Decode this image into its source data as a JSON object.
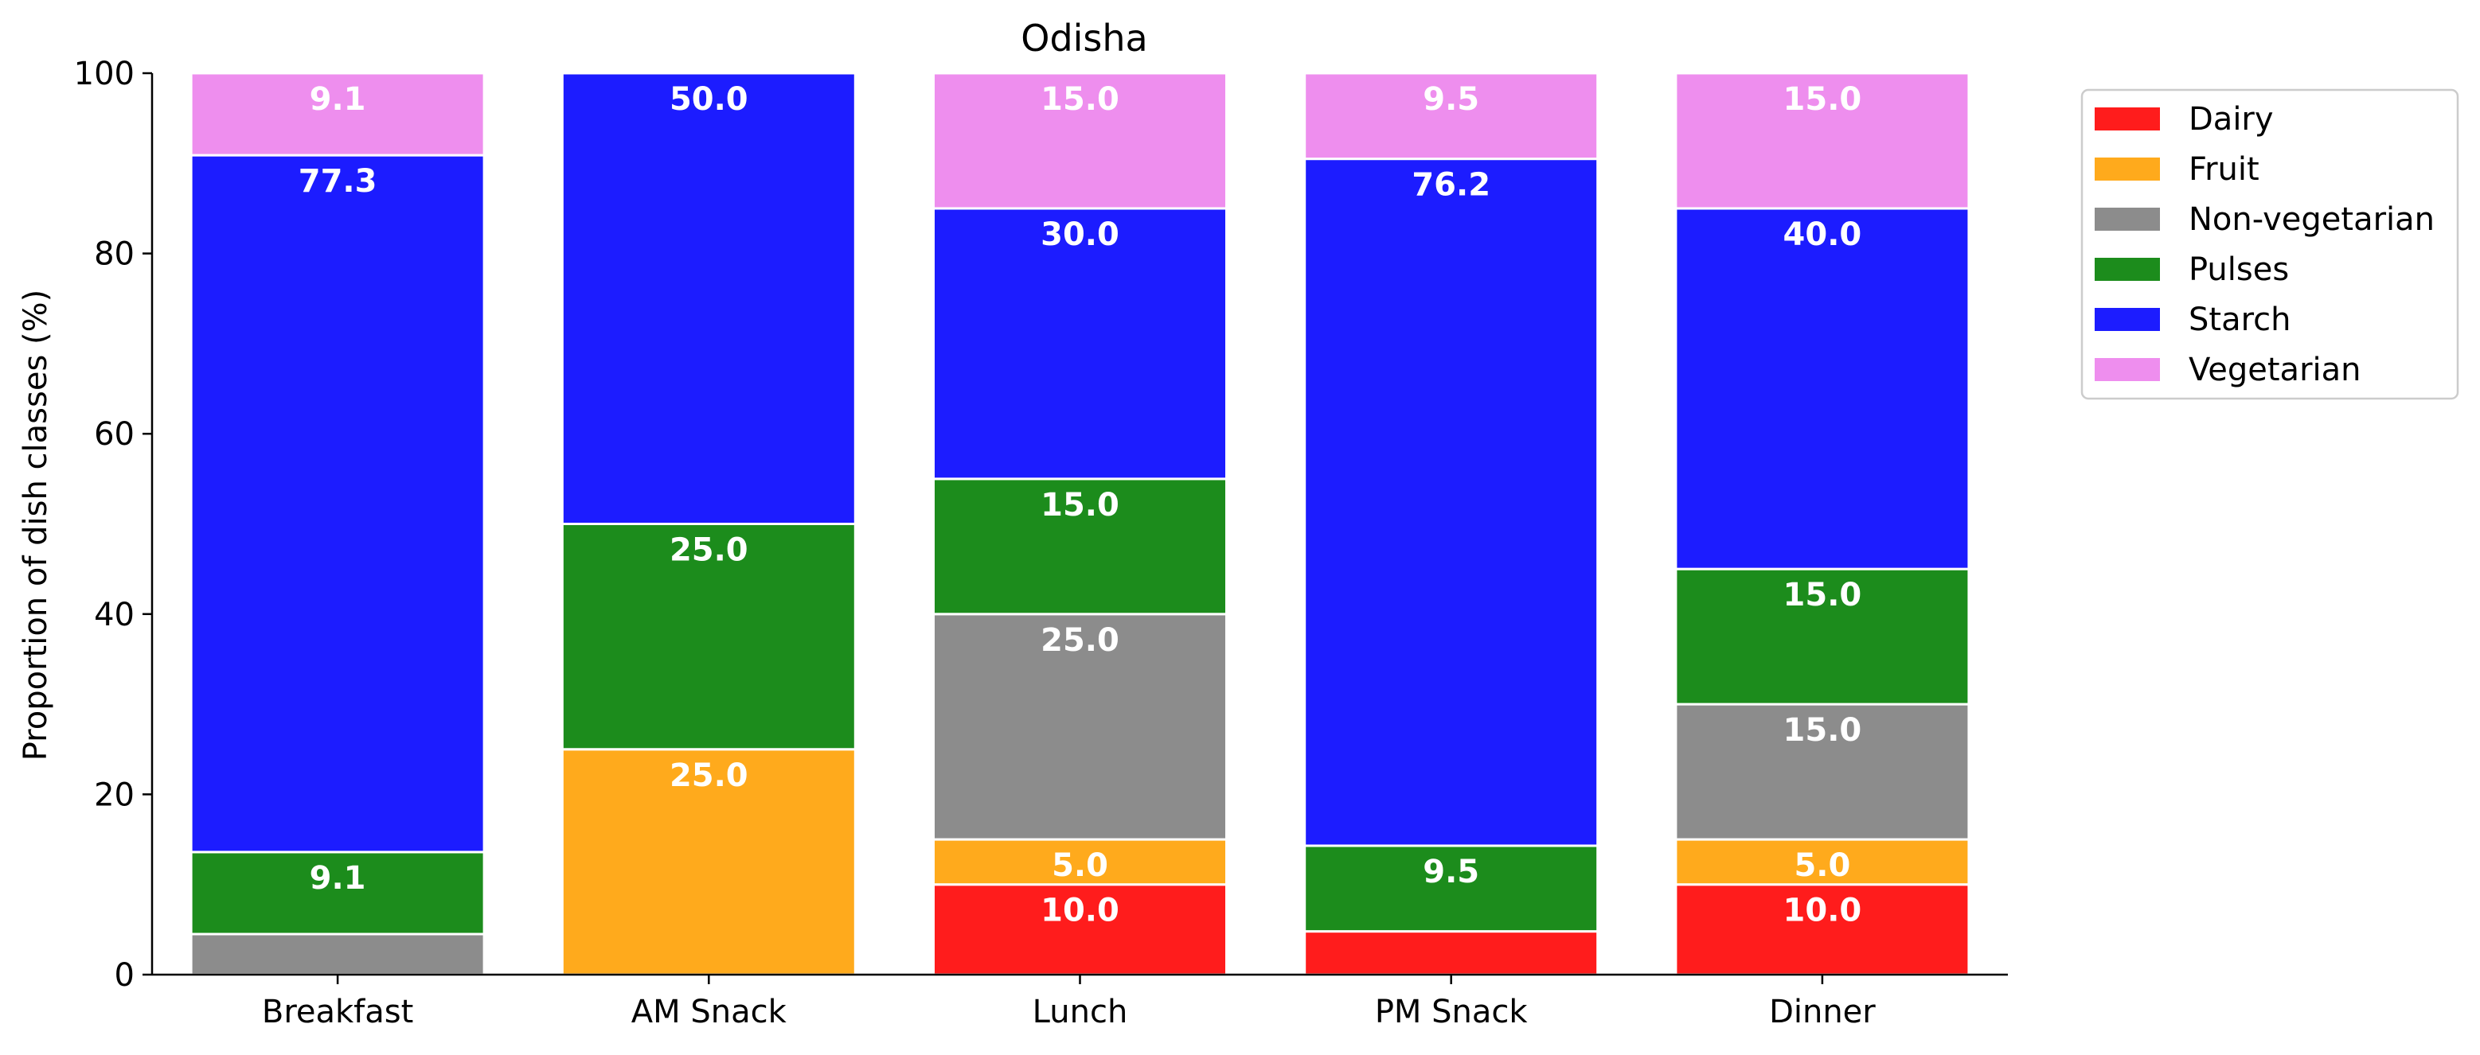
{
  "chart_data": {
    "type": "bar",
    "stacked": true,
    "title": "Odisha",
    "xlabel": "",
    "ylabel": "Proportion of dish classes (%)",
    "ylim": [
      0,
      100
    ],
    "yticks": [
      "0",
      "20",
      "40",
      "60",
      "80",
      "100"
    ],
    "grid": false,
    "legend_position": "outside-right",
    "categories": [
      "Breakfast",
      "AM Snack",
      "Lunch",
      "PM Snack",
      "Dinner"
    ],
    "series": [
      {
        "name": "Dairy",
        "color": "#ff1c1c",
        "values": [
          0,
          0,
          10.0,
          4.8,
          10.0
        ],
        "labels": [
          "",
          "",
          "10.0",
          "",
          "10.0"
        ]
      },
      {
        "name": "Fruit",
        "color": "#ffaa1c",
        "values": [
          0,
          25.0,
          5.0,
          0,
          5.0
        ],
        "labels": [
          "",
          "25.0",
          "5.0",
          "",
          "5.0"
        ]
      },
      {
        "name": "Non-vegetarian",
        "color": "#8c8c8c",
        "values": [
          4.5,
          0,
          25.0,
          0,
          15.0
        ],
        "labels": [
          "",
          "",
          "25.0",
          "",
          "15.0"
        ]
      },
      {
        "name": "Pulses",
        "color": "#1c8c1c",
        "values": [
          9.1,
          25.0,
          15.0,
          9.5,
          15.0
        ],
        "labels": [
          "9.1",
          "25.0",
          "15.0",
          "9.5",
          "15.0"
        ]
      },
      {
        "name": "Starch",
        "color": "#1c1cff",
        "values": [
          77.3,
          50.0,
          30.0,
          76.2,
          40.0
        ],
        "labels": [
          "77.3",
          "50.0",
          "30.0",
          "76.2",
          "40.0"
        ]
      },
      {
        "name": "Vegetarian",
        "color": "#ee8eee",
        "values": [
          9.1,
          0,
          15.0,
          9.5,
          15.0
        ],
        "labels": [
          "9.1",
          "",
          "15.0",
          "9.5",
          "15.0"
        ]
      }
    ]
  }
}
